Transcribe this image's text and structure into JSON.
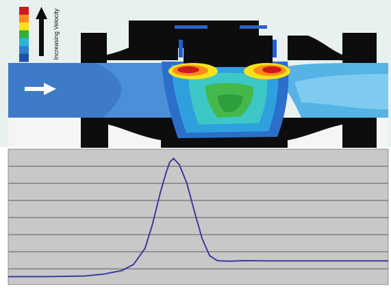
{
  "legend": {
    "label": "Increasing Velocity",
    "colors": [
      "#cc1a1a",
      "#ff8a1a",
      "#f5e21a",
      "#33b03c",
      "#29b6d9",
      "#2f7fd1",
      "#1f4fa8"
    ]
  },
  "colors": {
    "valve_body": "#0d0d0d",
    "pipe_flow": "#3d7bc8",
    "outlet_flow": "#55b3e6",
    "panel_background": "#c8c8c8",
    "trace_line": "#3b3a9e"
  },
  "chart_data": {
    "type": "line",
    "title": "",
    "xlabel": "",
    "ylabel": "",
    "gridlines": 8,
    "series": [
      {
        "values": [
          [
            0,
            0.02
          ],
          [
            10,
            0.02
          ],
          [
            20,
            0.025
          ],
          [
            25,
            0.04
          ],
          [
            30,
            0.07
          ],
          [
            33,
            0.12
          ],
          [
            36,
            0.25
          ],
          [
            38,
            0.45
          ],
          [
            40,
            0.7
          ],
          [
            41.5,
            0.86
          ],
          [
            42.5,
            0.95
          ],
          [
            43.5,
            0.98
          ],
          [
            45,
            0.93
          ],
          [
            47,
            0.78
          ],
          [
            49,
            0.55
          ],
          [
            51,
            0.33
          ],
          [
            53,
            0.19
          ],
          [
            55,
            0.15
          ],
          [
            58,
            0.145
          ],
          [
            62,
            0.15
          ],
          [
            70,
            0.148
          ],
          [
            100,
            0.148
          ]
        ]
      }
    ]
  }
}
